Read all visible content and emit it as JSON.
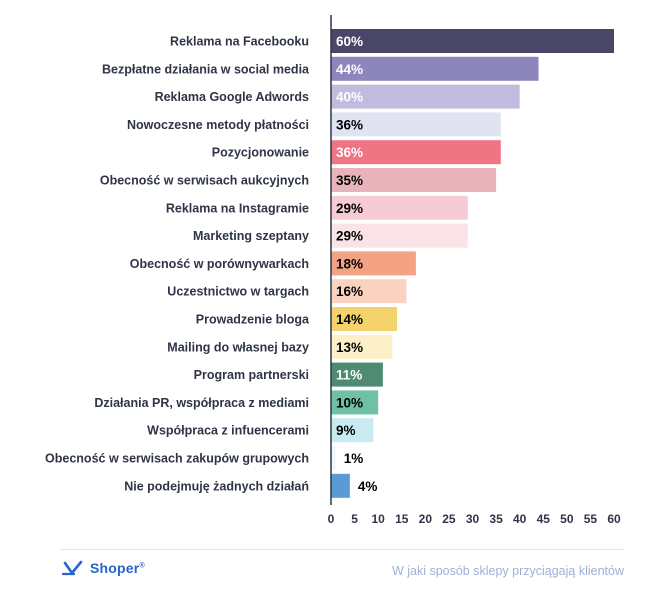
{
  "chart_data": {
    "type": "bar",
    "orientation": "horizontal",
    "categories": [
      "Reklama na Facebooku",
      "Bezpłatne działania w social media",
      "Reklama Google Adwords",
      "Nowoczesne metody płatności",
      "Pozycjonowanie",
      "Obecność w serwisach aukcyjnych",
      "Reklama na Instagramie",
      "Marketing szeptany",
      "Obecność w porównywarkach",
      "Uczestnictwo w targach",
      "Prowadzenie bloga",
      "Mailing do własnej bazy",
      "Program partnerski",
      "Działania PR, współpraca z mediami",
      "Współpraca z infuencerami",
      "Obecność w serwisach zakupów grupowych",
      "Nie podejmuję żadnych działań"
    ],
    "values": [
      60,
      44,
      40,
      36,
      36,
      35,
      29,
      29,
      18,
      16,
      14,
      13,
      11,
      10,
      9,
      1,
      4
    ],
    "value_labels": [
      "60%",
      "44%",
      "40%",
      "36%",
      "36%",
      "35%",
      "29%",
      "29%",
      "18%",
      "16%",
      "14%",
      "13%",
      "11%",
      "10%",
      "9%",
      "1%",
      "4%"
    ],
    "bar_colors": [
      "#4a4668",
      "#8c86bd",
      "#c1bcdf",
      "#e0e3f2",
      "#ef7585",
      "#e7b4bb",
      "#f6cbd3",
      "#fae3e7",
      "#f3a383",
      "#f9d3c0",
      "#f5d36c",
      "#fcf0c8",
      "#4e8b72",
      "#6fc0a6",
      "#c7ebf1",
      "#eef9fb",
      "#5b9bd5"
    ],
    "value_label_colors": [
      "#ffffff",
      "#ffffff",
      "#ffffff",
      "#000000",
      "#ffffff",
      "#000000",
      "#000000",
      "#000000",
      "#000000",
      "#000000",
      "#000000",
      "#000000",
      "#ffffff",
      "#000000",
      "#000000",
      "#000000",
      "#000000"
    ],
    "xlim": [
      0,
      60
    ],
    "xticks": [
      0,
      5,
      10,
      15,
      20,
      25,
      30,
      35,
      40,
      45,
      50,
      55,
      60
    ],
    "grid": false,
    "title": "",
    "xlabel": "",
    "ylabel": ""
  },
  "footer": {
    "brand_name": "Shoper",
    "brand_mark": "®",
    "caption": "W jaki sposób sklepy przyciągają klientów",
    "brand_color": "#2466c9",
    "caption_color": "#9fb0d3",
    "logo_icon": "shoper-logo-icon"
  }
}
